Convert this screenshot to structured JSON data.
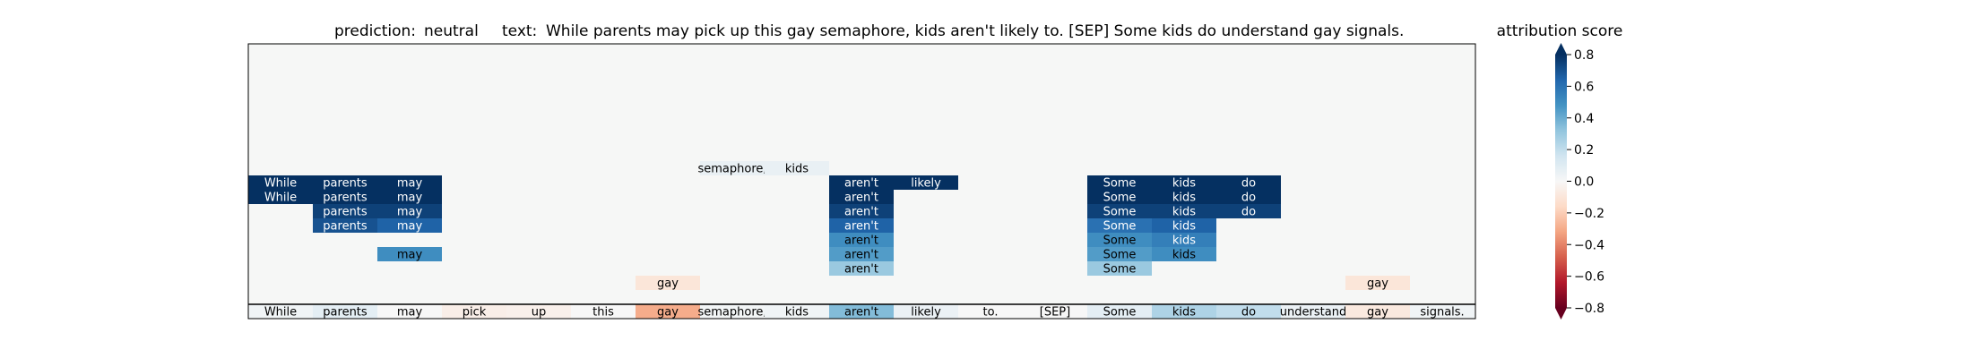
{
  "chart_data": {
    "type": "heatmap",
    "title": {
      "prediction_label": "prediction:",
      "prediction": "neutral",
      "text_label": "text:",
      "text": "While parents may pick up this gay semaphore, kids aren't likely to. [SEP] Some kids do understand gay signals."
    },
    "tokens": [
      "While",
      "parents",
      "may",
      "pick",
      "up",
      "this",
      "gay",
      "semaphore,",
      "kids",
      "aren't",
      "likely",
      "to.",
      "[SEP]",
      "Some",
      "kids",
      "do",
      "understand",
      "gay",
      "signals."
    ],
    "base_scores": [
      0.03,
      0.08,
      0.0,
      -0.05,
      -0.04,
      0.0,
      -0.3,
      0.02,
      0.03,
      0.35,
      0.05,
      0.0,
      0.0,
      0.08,
      0.25,
      0.2,
      0.05,
      -0.08,
      0.03
    ],
    "stacked_rows": [
      [
        {
          "i": 6,
          "token": "gay",
          "score": -0.1
        },
        {
          "i": 17,
          "token": "gay",
          "score": -0.1
        }
      ],
      [
        {
          "i": 9,
          "token": "aren't",
          "score": 0.3
        },
        {
          "i": 13,
          "token": "Some",
          "score": 0.3
        }
      ],
      [
        {
          "i": 2,
          "token": "may",
          "score": 0.5
        },
        {
          "i": 9,
          "token": "aren't",
          "score": 0.45
        },
        {
          "i": 13,
          "token": "Some",
          "score": 0.45
        },
        {
          "i": 14,
          "token": "kids",
          "score": 0.5
        }
      ],
      [
        {
          "i": 9,
          "token": "aren't",
          "score": 0.5
        },
        {
          "i": 13,
          "token": "Some",
          "score": 0.5
        },
        {
          "i": 14,
          "token": "kids",
          "score": 0.55
        }
      ],
      [
        {
          "i": 1,
          "token": "parents",
          "score": 0.7
        },
        {
          "i": 2,
          "token": "may",
          "score": 0.65
        },
        {
          "i": 9,
          "token": "aren't",
          "score": 0.65
        },
        {
          "i": 13,
          "token": "Some",
          "score": 0.6
        },
        {
          "i": 14,
          "token": "kids",
          "score": 0.65
        }
      ],
      [
        {
          "i": 1,
          "token": "parents",
          "score": 0.75
        },
        {
          "i": 2,
          "token": "may",
          "score": 0.75
        },
        {
          "i": 9,
          "token": "aren't",
          "score": 0.75
        },
        {
          "i": 13,
          "token": "Some",
          "score": 0.75
        },
        {
          "i": 14,
          "token": "kids",
          "score": 0.75
        },
        {
          "i": 15,
          "token": "do",
          "score": 0.75
        }
      ],
      [
        {
          "i": 0,
          "token": "While",
          "score": 0.85
        },
        {
          "i": 1,
          "token": "parents",
          "score": 0.8
        },
        {
          "i": 2,
          "token": "may",
          "score": 0.8
        },
        {
          "i": 9,
          "token": "aren't",
          "score": 0.8
        },
        {
          "i": 13,
          "token": "Some",
          "score": 0.8
        },
        {
          "i": 14,
          "token": "kids",
          "score": 0.8
        },
        {
          "i": 15,
          "token": "do",
          "score": 0.8
        }
      ],
      [
        {
          "i": 0,
          "token": "While",
          "score": 0.85
        },
        {
          "i": 1,
          "token": "parents",
          "score": 0.8
        },
        {
          "i": 2,
          "token": "may",
          "score": 0.85
        },
        {
          "i": 9,
          "token": "aren't",
          "score": 0.85
        },
        {
          "i": 10,
          "token": "likely",
          "score": 0.85
        },
        {
          "i": 13,
          "token": "Some",
          "score": 0.85
        },
        {
          "i": 14,
          "token": "kids",
          "score": 0.85
        },
        {
          "i": 15,
          "token": "do",
          "score": 0.85
        }
      ],
      [
        {
          "i": 7,
          "token": "semaphore,",
          "score": 0.06
        },
        {
          "i": 8,
          "token": "kids",
          "score": 0.06
        }
      ]
    ],
    "colorbar": {
      "title": "attribution score",
      "range": [
        -0.8,
        0.8
      ],
      "ticks": [
        0.8,
        0.6,
        0.4,
        0.2,
        0.0,
        -0.2,
        -0.4,
        -0.6,
        -0.8
      ],
      "tick_labels": [
        "0.8",
        "0.6",
        "0.4",
        "0.2",
        "0.0",
        "−0.2",
        "−0.4",
        "−0.6",
        "−0.8"
      ],
      "colormap": "RdBu",
      "extend": "both"
    },
    "background_color": "#f6f7f6"
  }
}
